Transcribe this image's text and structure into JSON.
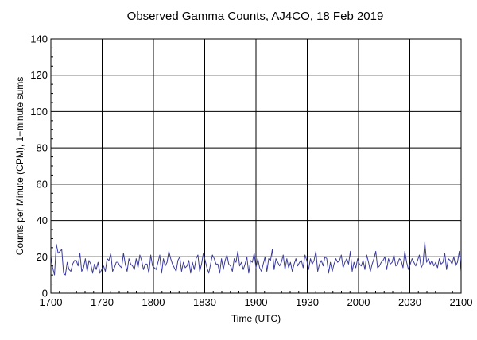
{
  "chart_data": {
    "type": "line",
    "title": "Observed Gamma Counts, AJ4CO, 18 Feb 2019",
    "xlabel": "Time (UTC)",
    "ylabel": "Counts per Minute (CPM), 1−minute sums",
    "xlim": [
      "1700",
      "2100"
    ],
    "ylim": [
      0,
      140
    ],
    "x_ticks": [
      "1700",
      "1730",
      "1800",
      "1830",
      "1900",
      "1930",
      "2000",
      "2030",
      "2100"
    ],
    "y_ticks": [
      0,
      20,
      40,
      60,
      80,
      100,
      120,
      140
    ],
    "grid": true,
    "series_color": "#3b3b9a",
    "series": [
      {
        "values": [
          20,
          14,
          10,
          27,
          22,
          23,
          24,
          11,
          10,
          17,
          13,
          12,
          16,
          18,
          18,
          15,
          22,
          12,
          14,
          19,
          12,
          18,
          16,
          11,
          16,
          13,
          17,
          11,
          13,
          15,
          12,
          19,
          18,
          22,
          12,
          14,
          17,
          17,
          15,
          14,
          22,
          16,
          12,
          19,
          16,
          15,
          13,
          19,
          14,
          21,
          18,
          13,
          16,
          16,
          11,
          21,
          15,
          14,
          13,
          17,
          21,
          11,
          19,
          15,
          17,
          23,
          19,
          16,
          14,
          12,
          18,
          20,
          12,
          17,
          14,
          15,
          18,
          11,
          17,
          13,
          19,
          21,
          12,
          16,
          22,
          18,
          14,
          11,
          16,
          21,
          19,
          16,
          16,
          11,
          19,
          13,
          18,
          21,
          16,
          15,
          12,
          19,
          17,
          23,
          15,
          17,
          13,
          16,
          20,
          11,
          18,
          17,
          22,
          14,
          19,
          14,
          12,
          16,
          20,
          12,
          19,
          18,
          24,
          13,
          19,
          17,
          15,
          17,
          21,
          13,
          19,
          14,
          17,
          12,
          16,
          19,
          15,
          17,
          18,
          14,
          21,
          18,
          13,
          19,
          16,
          18,
          23,
          12,
          16,
          18,
          15,
          20,
          19,
          11,
          17,
          12,
          16,
          19,
          17,
          18,
          21,
          14,
          17,
          19,
          16,
          23,
          12,
          17,
          14,
          19,
          16,
          15,
          18,
          13,
          21,
          17,
          12,
          16,
          19,
          23,
          14,
          15,
          17,
          18,
          20,
          13,
          19,
          16,
          17,
          21,
          15,
          16,
          19,
          18,
          14,
          23,
          17,
          13,
          16,
          19,
          17,
          15,
          18,
          21,
          14,
          16,
          28,
          17,
          19,
          16,
          18,
          15,
          17,
          14,
          19,
          16,
          17,
          22,
          13,
          19,
          18,
          16,
          20,
          15,
          17,
          23,
          12
        ]
      }
    ]
  }
}
